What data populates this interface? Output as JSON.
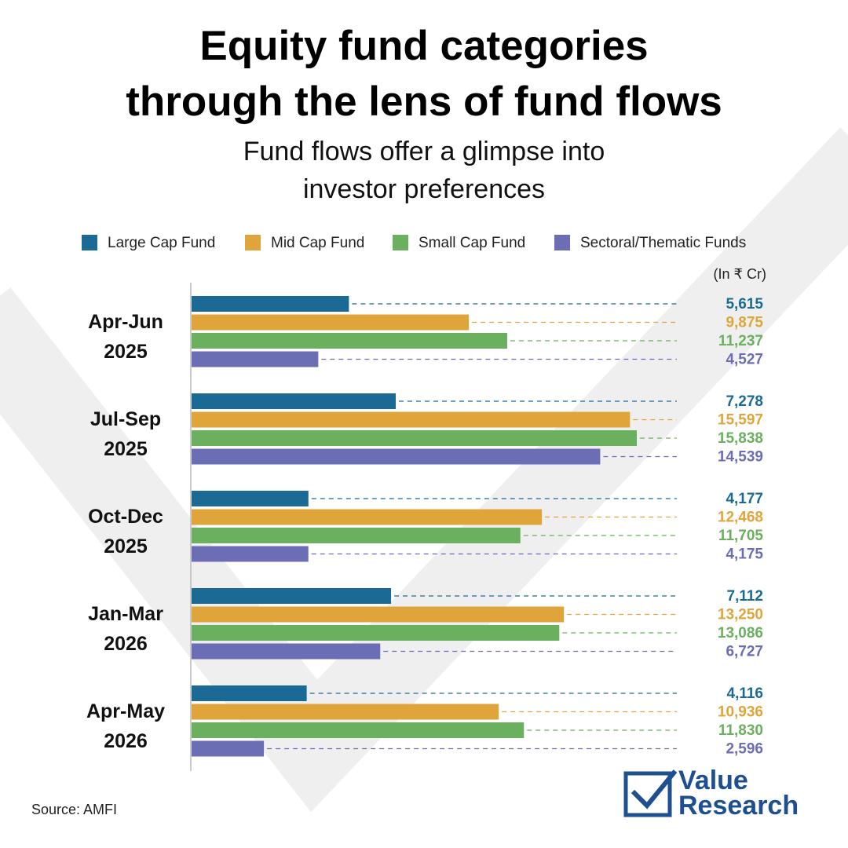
{
  "chart_data": {
    "type": "grouped-hbar",
    "title_lines": [
      "Equity fund categories",
      "through the lens of fund flows"
    ],
    "subtitle_lines": [
      "Fund flows offer a glimpse into",
      "investor preferences"
    ],
    "unit_label": "(In ₹ Cr)",
    "categories": [
      "Apr-Jun 2025",
      "Jul-Sep 2025",
      "Oct-Dec 2025",
      "Jan-Mar 2026",
      "Apr-May 2026"
    ],
    "series": [
      {
        "name": "Large Cap Fund",
        "color": "#1b6a96",
        "values": [
          5615,
          7278,
          4177,
          7112,
          4116
        ],
        "value_labels": [
          "5,615",
          "7,278",
          "4,177",
          "7,112",
          "4,116"
        ]
      },
      {
        "name": "Mid Cap Fund",
        "color": "#e0a53a",
        "values": [
          9875,
          15597,
          12468,
          13250,
          10936
        ],
        "value_labels": [
          "9,875",
          "15,597",
          "12,468",
          "13,250",
          "10,936"
        ]
      },
      {
        "name": "Small Cap Fund",
        "color": "#6ab05e",
        "values": [
          11237,
          15838,
          11705,
          13086,
          11830
        ],
        "value_labels": [
          "11,237",
          "15,838",
          "11,705",
          "13,086",
          "11,830"
        ]
      },
      {
        "name": "Sectoral/Thematic Funds",
        "color": "#6b6db5",
        "values": [
          4527,
          14539,
          4175,
          6727,
          2596
        ],
        "value_labels": [
          "4,527",
          "14,539",
          "4,175",
          "6,727",
          "2,596"
        ]
      }
    ],
    "source": "Source: AMFI"
  },
  "logo": {
    "line1": "Value",
    "line2": "Research"
  }
}
